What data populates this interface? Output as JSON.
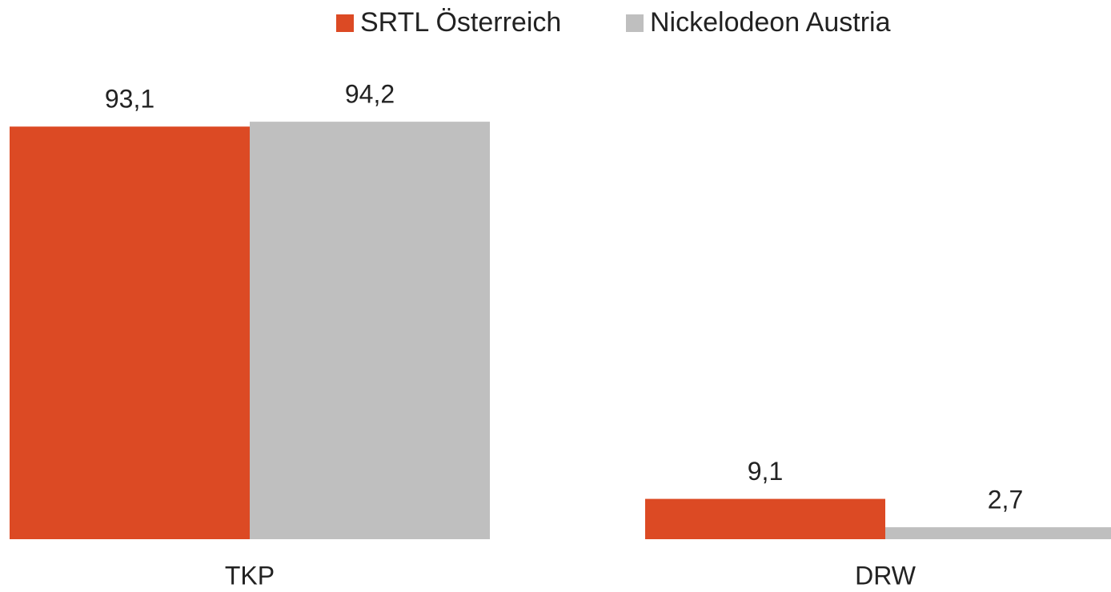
{
  "chart_data": {
    "type": "bar",
    "categories": [
      "TKP",
      "DRW"
    ],
    "series": [
      {
        "name": "SRTL Österreich",
        "color": "#dc4a24",
        "values": [
          93.1,
          9.1
        ],
        "value_labels": [
          "93,1",
          "9,1"
        ]
      },
      {
        "name": "Nickelodeon Austria",
        "color": "#bfbfbf",
        "values": [
          94.2,
          2.7
        ],
        "value_labels": [
          "94,2",
          "2,7"
        ]
      }
    ],
    "ylim": [
      0,
      100
    ],
    "legend": "top"
  }
}
